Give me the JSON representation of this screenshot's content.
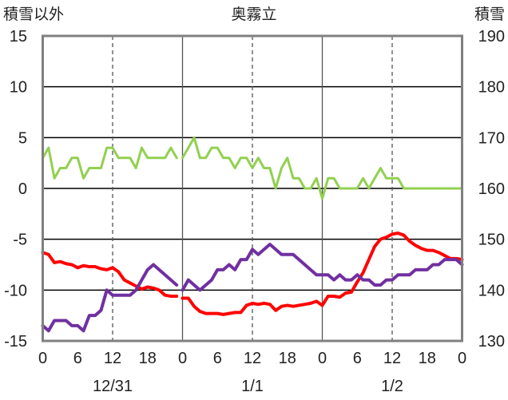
{
  "chart_data": {
    "type": "line",
    "title": "奥霧立",
    "ylabel_left": "積雪以外",
    "ylabel_right": "積雪",
    "ylim_left": [
      -15,
      15
    ],
    "yticks_left": [
      "15",
      "10",
      "5",
      "0",
      "-5",
      "-10",
      "-15"
    ],
    "ylim_right": [
      130,
      190
    ],
    "yticks_right": [
      "190",
      "180",
      "170",
      "160",
      "150",
      "140",
      "130"
    ],
    "xlim": [
      0,
      72
    ],
    "xtick_labels": [
      "0",
      "6",
      "12",
      "18",
      "0",
      "6",
      "12",
      "18",
      "0",
      "6",
      "12",
      "18",
      "0"
    ],
    "day_labels": [
      "12/31",
      "1/1",
      "1/2"
    ],
    "grid": "dashed vertical at 12h of each day, solid vertical at each day boundary, horizontal at 0",
    "series": [
      {
        "color": "#ff0000",
        "axis": "left",
        "segments": [
          {
            "x": [
              0,
              1,
              2,
              3,
              4,
              5,
              6,
              7,
              8,
              9,
              10,
              11,
              12,
              13,
              14,
              15,
              16,
              17,
              18,
              19,
              20,
              21,
              22,
              23
            ],
            "y": [
              -6.3,
              -6.5,
              -7.3,
              -7.2,
              -7.4,
              -7.5,
              -7.8,
              -7.6,
              -7.7,
              -7.7,
              -7.9,
              -8.0,
              -7.8,
              -8.2,
              -9.0,
              -9.3,
              -9.6,
              -9.9,
              -9.7,
              -9.8,
              -10.0,
              -10.5,
              -10.6,
              -10.6
            ]
          },
          {
            "x": [
              24,
              25,
              26,
              27,
              28,
              29,
              30,
              31,
              32,
              33,
              34,
              35,
              36,
              37,
              38,
              39,
              40,
              41,
              42,
              43,
              44,
              45,
              46,
              47,
              48,
              49,
              50,
              51,
              52,
              53,
              54,
              55,
              56,
              57,
              58,
              59,
              60,
              61,
              62,
              63,
              64,
              65,
              66,
              67,
              68,
              69,
              70,
              71,
              72
            ],
            "y": [
              -10.8,
              -10.8,
              -11.6,
              -12.1,
              -12.3,
              -12.3,
              -12.3,
              -12.4,
              -12.3,
              -12.2,
              -12.2,
              -11.5,
              -11.3,
              -11.4,
              -11.3,
              -11.4,
              -12.0,
              -11.6,
              -11.5,
              -11.6,
              -11.5,
              -11.4,
              -11.3,
              -11.1,
              -11.5,
              -10.6,
              -10.6,
              -10.7,
              -10.3,
              -10.2,
              -9.2,
              -8.3,
              -7.0,
              -5.7,
              -5.0,
              -4.8,
              -4.5,
              -4.4,
              -4.6,
              -5.2,
              -5.6,
              -5.9,
              -6.1,
              -6.1,
              -6.3,
              -6.6,
              -6.9,
              -6.9,
              -7.0
            ]
          }
        ]
      },
      {
        "color": "#7030a0",
        "axis": "left",
        "segments": [
          {
            "x": [
              0,
              1,
              2,
              3,
              4,
              5,
              6,
              7,
              8,
              9,
              10,
              11,
              12,
              13,
              14,
              15,
              16,
              17,
              18,
              19,
              20,
              21,
              22,
              23
            ],
            "y": [
              -13.5,
              -14.0,
              -13.0,
              -13.0,
              -13.0,
              -13.5,
              -13.5,
              -14.0,
              -12.5,
              -12.5,
              -12.0,
              -10.0,
              -10.5,
              -10.5,
              -10.5,
              -10.5,
              -10.0,
              -9.0,
              -8.0,
              -7.5,
              -8.0,
              -8.5,
              -9.0,
              -9.5
            ]
          },
          {
            "x": [
              24,
              25,
              26,
              27,
              28,
              29,
              30,
              31,
              32,
              33,
              34,
              35,
              36,
              37,
              38,
              39,
              40,
              41,
              42,
              43,
              44,
              45,
              46,
              47,
              48,
              49,
              50,
              51,
              52,
              53,
              54,
              55,
              56,
              57,
              58,
              59,
              60,
              61,
              62,
              63,
              64,
              65,
              66,
              67,
              68,
              69,
              70,
              71,
              72
            ],
            "y": [
              -10.0,
              -9.0,
              -9.5,
              -10.0,
              -9.5,
              -9.0,
              -8.0,
              -8.0,
              -7.5,
              -8.0,
              -7.0,
              -7.0,
              -6.0,
              -6.5,
              -6.0,
              -5.5,
              -6.0,
              -6.5,
              -6.5,
              -6.5,
              -7.0,
              -7.5,
              -8.0,
              -8.5,
              -8.5,
              -8.5,
              -9.0,
              -8.5,
              -9.0,
              -9.0,
              -8.5,
              -9.0,
              -9.0,
              -9.5,
              -9.5,
              -9.0,
              -9.0,
              -8.5,
              -8.5,
              -8.5,
              -8.0,
              -8.0,
              -8.0,
              -7.5,
              -7.5,
              -7.0,
              -7.0,
              -7.0,
              -7.5
            ]
          }
        ]
      },
      {
        "color": "#92d050",
        "axis": "left",
        "segments": [
          {
            "x": [
              0,
              1,
              2,
              3,
              4,
              5,
              6,
              7,
              8,
              9,
              10,
              11,
              12,
              13,
              14,
              15,
              16,
              17,
              18,
              19,
              20,
              21,
              22,
              23
            ],
            "y": [
              3,
              4,
              1,
              2,
              2,
              3,
              3,
              1,
              2,
              2,
              2,
              4,
              4,
              3,
              3,
              3,
              2,
              4,
              3,
              3,
              3,
              3,
              4,
              3
            ]
          },
          {
            "x": [
              24,
              25,
              26,
              27,
              28,
              29,
              30,
              31,
              32,
              33,
              34,
              35,
              36,
              37,
              38,
              39,
              40,
              41,
              42,
              43,
              44,
              45,
              46,
              47,
              48,
              49,
              50,
              51,
              52,
              53,
              54,
              55,
              56,
              57,
              58,
              59,
              60,
              61,
              62,
              63,
              64,
              65,
              66,
              67,
              68,
              69,
              70,
              71,
              72
            ],
            "y": [
              3,
              4,
              5,
              3,
              3,
              4,
              4,
              3,
              3,
              2,
              3,
              3,
              2,
              3,
              2,
              2,
              0,
              2,
              3,
              1,
              1,
              0,
              0,
              1,
              -1,
              1,
              1,
              0,
              0,
              0,
              0,
              1,
              0,
              1,
              2,
              1,
              1,
              1,
              0,
              0,
              0,
              0,
              0,
              0,
              0,
              0,
              0,
              0,
              0
            ]
          }
        ]
      }
    ]
  }
}
